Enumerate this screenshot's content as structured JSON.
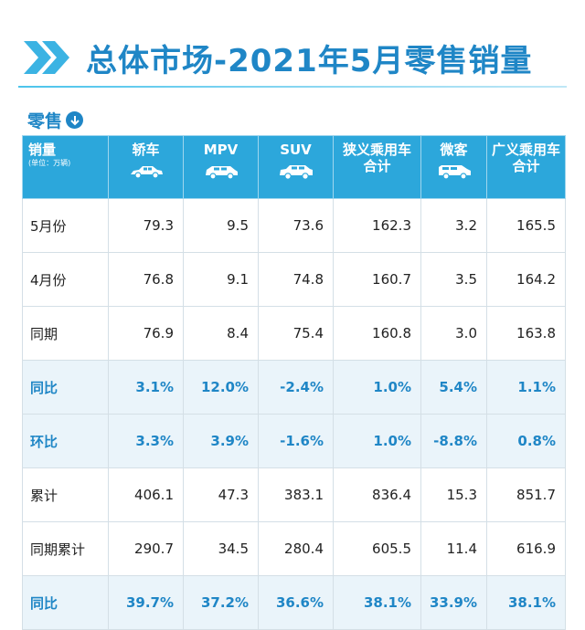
{
  "title": "总体市场-2021年5月零售销量",
  "section": "零售",
  "header": {
    "first_label": "销量",
    "first_sub": "(单位：万辆)",
    "columns": [
      {
        "label": "轿车",
        "icon": "sedan-icon"
      },
      {
        "label": "MPV",
        "icon": "mpv-icon"
      },
      {
        "label": "SUV",
        "icon": "suv-icon"
      },
      {
        "label": "狭义乘用车合计",
        "line1": "狭义乘用车",
        "line2": "合计"
      },
      {
        "label": "微客",
        "icon": "minivan-icon"
      },
      {
        "label": "广义乘用车合计",
        "line1": "广义乘用车",
        "line2": "合计"
      }
    ]
  },
  "rows": [
    {
      "label": "5月份",
      "values": [
        "79.3",
        "9.5",
        "73.6",
        "162.3",
        "3.2",
        "165.5"
      ],
      "highlight": false
    },
    {
      "label": "4月份",
      "values": [
        "76.8",
        "9.1",
        "74.8",
        "160.7",
        "3.5",
        "164.2"
      ],
      "highlight": false
    },
    {
      "label": "同期",
      "values": [
        "76.9",
        "8.4",
        "75.4",
        "160.8",
        "3.0",
        "163.8"
      ],
      "highlight": false
    },
    {
      "label": "同比",
      "values": [
        "3.1%",
        "12.0%",
        "-2.4%",
        "1.0%",
        "5.4%",
        "1.1%"
      ],
      "highlight": true
    },
    {
      "label": "环比",
      "values": [
        "3.3%",
        "3.9%",
        "-1.6%",
        "1.0%",
        "-8.8%",
        "0.8%"
      ],
      "highlight": true
    },
    {
      "label": "累计",
      "values": [
        "406.1",
        "47.3",
        "383.1",
        "836.4",
        "15.3",
        "851.7"
      ],
      "highlight": false
    },
    {
      "label": "同期累计",
      "values": [
        "290.7",
        "34.5",
        "280.4",
        "605.5",
        "11.4",
        "616.9"
      ],
      "highlight": false
    },
    {
      "label": "同比",
      "values": [
        "39.7%",
        "37.2%",
        "36.6%",
        "38.1%",
        "33.9%",
        "38.1%"
      ],
      "highlight": true
    }
  ],
  "colors": {
    "accent": "#1f86c6",
    "header_bg": "#2ca7db",
    "highlight_bg": "#eaf4fa"
  }
}
